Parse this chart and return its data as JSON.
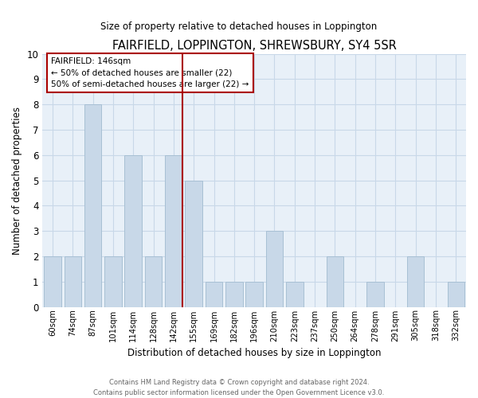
{
  "title": "FAIRFIELD, LOPPINGTON, SHREWSBURY, SY4 5SR",
  "subtitle": "Size of property relative to detached houses in Loppington",
  "xlabel": "Distribution of detached houses by size in Loppington",
  "ylabel": "Number of detached properties",
  "bin_labels": [
    "60sqm",
    "74sqm",
    "87sqm",
    "101sqm",
    "114sqm",
    "128sqm",
    "142sqm",
    "155sqm",
    "169sqm",
    "182sqm",
    "196sqm",
    "210sqm",
    "223sqm",
    "237sqm",
    "250sqm",
    "264sqm",
    "278sqm",
    "291sqm",
    "305sqm",
    "318sqm",
    "332sqm"
  ],
  "bar_values": [
    2,
    2,
    8,
    2,
    6,
    2,
    6,
    5,
    1,
    1,
    1,
    3,
    1,
    0,
    2,
    0,
    1,
    0,
    2,
    0,
    1
  ],
  "bar_color": "#c8d8e8",
  "bar_edgecolor": "#a8c0d4",
  "highlight_color": "#aa0000",
  "ylim": [
    0,
    10
  ],
  "yticks": [
    0,
    1,
    2,
    3,
    4,
    5,
    6,
    7,
    8,
    9,
    10
  ],
  "annotation_title": "FAIRFIELD: 146sqm",
  "annotation_line1": "← 50% of detached houses are smaller (22)",
  "annotation_line2": "50% of semi-detached houses are larger (22) →",
  "annotation_box_facecolor": "#ffffff",
  "annotation_box_edgecolor": "#aa0000",
  "footer_line1": "Contains HM Land Registry data © Crown copyright and database right 2024.",
  "footer_line2": "Contains public sector information licensed under the Open Government Licence v3.0.",
  "grid_color": "#c8d8e8",
  "plot_bg_color": "#e8f0f8",
  "figure_bg_color": "#ffffff"
}
